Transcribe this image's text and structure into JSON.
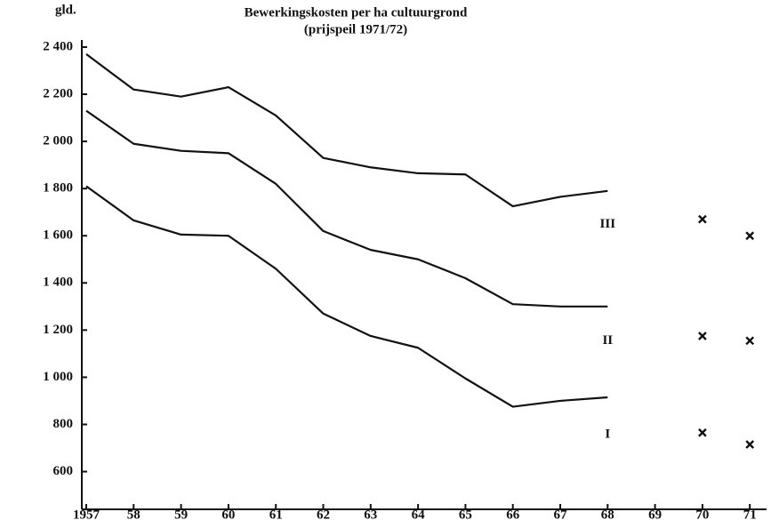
{
  "chart_data": {
    "type": "line",
    "title": "Bewerkingskosten per ha cultuurgrond",
    "subtitle": "(prijspeil 1971/72)",
    "y_label": "gld.",
    "categories": [
      "1957",
      "58",
      "59",
      "60",
      "61",
      "62",
      "63",
      "64",
      "65",
      "66",
      "67",
      "68",
      "69",
      "70",
      "71"
    ],
    "ylim": [
      440,
      2430
    ],
    "yticks": [
      {
        "value": 2400,
        "label": "2 400"
      },
      {
        "value": 2200,
        "label": "2 200"
      },
      {
        "value": 2000,
        "label": "2 000"
      },
      {
        "value": 1800,
        "label": "1 800"
      },
      {
        "value": 1600,
        "label": "1 600"
      },
      {
        "value": 1400,
        "label": "1 400"
      },
      {
        "value": 1200,
        "label": "1 200"
      },
      {
        "value": 1000,
        "label": "1 000"
      },
      800,
      600
    ],
    "series": [
      {
        "name": "III",
        "color": "#111111",
        "values": [
          2370,
          2220,
          2190,
          2230,
          2110,
          1930,
          1890,
          1865,
          1860,
          1725,
          1765,
          1790,
          null,
          null,
          null
        ],
        "markers": [
          null,
          null,
          null,
          null,
          null,
          null,
          null,
          null,
          null,
          null,
          null,
          null,
          null,
          1670,
          1600
        ]
      },
      {
        "name": "II",
        "color": "#111111",
        "values": [
          2130,
          1990,
          1960,
          1950,
          1820,
          1620,
          1540,
          1500,
          1420,
          1310,
          1300,
          1300,
          null,
          null,
          null
        ],
        "markers": [
          null,
          null,
          null,
          null,
          null,
          null,
          null,
          null,
          null,
          null,
          null,
          null,
          null,
          1175,
          1155
        ]
      },
      {
        "name": "I",
        "color": "#111111",
        "values": [
          1810,
          1665,
          1605,
          1600,
          1460,
          1270,
          1175,
          1125,
          995,
          875,
          900,
          915,
          null,
          null,
          null
        ],
        "markers": [
          null,
          null,
          null,
          null,
          null,
          null,
          null,
          null,
          null,
          null,
          null,
          null,
          null,
          765,
          715
        ]
      }
    ]
  }
}
